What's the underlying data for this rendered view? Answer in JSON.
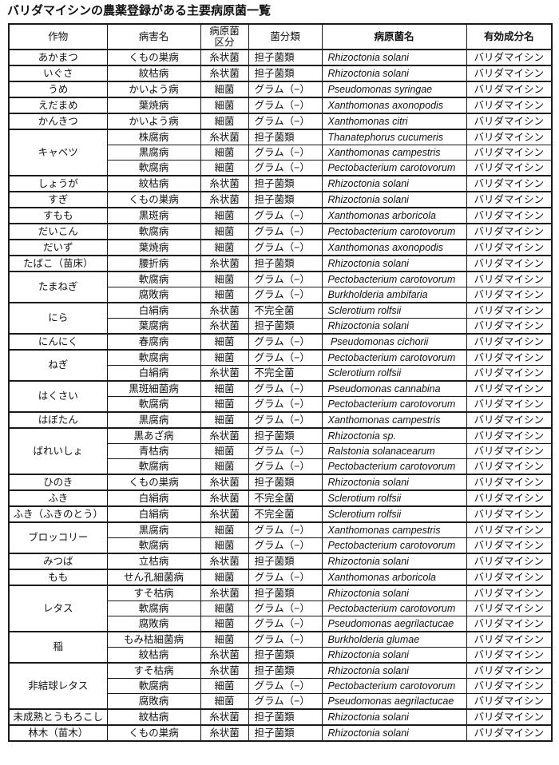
{
  "title": {
    "full": "バリダマイシンの農薬登録がある主要病原菌一覧",
    "name": "バリダマイシン",
    "rest": "の農薬登録がある主要病原菌一覧"
  },
  "table": {
    "headers": [
      {
        "label": "作物",
        "bold": false
      },
      {
        "label": "病害名",
        "bold": false
      },
      {
        "label": "病原菌\n区分",
        "bold": false
      },
      {
        "label": "菌分類",
        "bold": false
      },
      {
        "label": "病原菌名",
        "bold": true
      },
      {
        "label": "有効成分名",
        "bold": true
      }
    ],
    "groups": [
      {
        "crop": "あかまつ",
        "rows": [
          {
            "disease": "くもの巣病",
            "category": "糸状菌",
            "fungus_class": "担子菌類",
            "pathogen": "Rhizoctonia solani",
            "ingredient": "バリダマイシン"
          }
        ]
      },
      {
        "crop": "いぐさ",
        "rows": [
          {
            "disease": "紋枯病",
            "category": "糸状菌",
            "fungus_class": "担子菌類",
            "pathogen": "Rhizoctonia solani",
            "ingredient": "バリダマイシン"
          }
        ]
      },
      {
        "crop": "うめ",
        "rows": [
          {
            "disease": "かいよう病",
            "category": "細菌",
            "fungus_class": "グラム（−）",
            "pathogen": "Pseudomonas syringae",
            "ingredient": "バリダマイシン"
          }
        ]
      },
      {
        "crop": "えだまめ",
        "rows": [
          {
            "disease": "葉焼病",
            "category": "細菌",
            "fungus_class": "グラム（−）",
            "pathogen": "Xanthomonas axonopodis",
            "ingredient": "バリダマイシン"
          }
        ]
      },
      {
        "crop": "かんきつ",
        "rows": [
          {
            "disease": "かいよう病",
            "category": "細菌",
            "fungus_class": "グラム（−）",
            "pathogen": "Xanthomonas citri",
            "ingredient": "バリダマイシン"
          }
        ]
      },
      {
        "crop": "キャベツ",
        "rows": [
          {
            "disease": "株腐病",
            "category": "糸状菌",
            "fungus_class": "担子菌類",
            "pathogen": "Thanatephorus cucumeris",
            "ingredient": "バリダマイシン"
          },
          {
            "disease": "黒腐病",
            "category": "細菌",
            "fungus_class": "グラム（−）",
            "pathogen": "Xanthomonas campestris",
            "ingredient": "バリダマイシン"
          },
          {
            "disease": "軟腐病",
            "category": "細菌",
            "fungus_class": "グラム（−）",
            "pathogen": "Pectobacterium carotovorum",
            "ingredient": "バリダマイシン"
          }
        ]
      },
      {
        "crop": "しょうが",
        "rows": [
          {
            "disease": "紋枯病",
            "category": "糸状菌",
            "fungus_class": "担子菌類",
            "pathogen": "Rhizoctonia solani",
            "ingredient": "バリダマイシン"
          }
        ]
      },
      {
        "crop": "すぎ",
        "rows": [
          {
            "disease": "くもの巣病",
            "category": "糸状菌",
            "fungus_class": "担子菌類",
            "pathogen": "Rhizoctonia solani",
            "ingredient": "バリダマイシン"
          }
        ]
      },
      {
        "crop": "すもも",
        "rows": [
          {
            "disease": "黒斑病",
            "category": "細菌",
            "fungus_class": "グラム（−）",
            "pathogen": "Xanthomonas arboricola",
            "ingredient": "バリダマイシン"
          }
        ]
      },
      {
        "crop": "だいこん",
        "rows": [
          {
            "disease": "軟腐病",
            "category": "細菌",
            "fungus_class": "グラム（−）",
            "pathogen": "Pectobacterium carotovorum",
            "ingredient": "バリダマイシン"
          }
        ]
      },
      {
        "crop": "だいず",
        "rows": [
          {
            "disease": "葉焼病",
            "category": "細菌",
            "fungus_class": "グラム（−）",
            "pathogen": "Xanthomonas axonopodis",
            "ingredient": "バリダマイシン"
          }
        ]
      },
      {
        "crop": "たばこ（苗床）",
        "rows": [
          {
            "disease": "腰折病",
            "category": "糸状菌",
            "fungus_class": "担子菌類",
            "pathogen": "Rhizoctonia solani",
            "ingredient": "バリダマイシン"
          }
        ]
      },
      {
        "crop": "たまねぎ",
        "rows": [
          {
            "disease": "軟腐病",
            "category": "細菌",
            "fungus_class": "グラム（−）",
            "pathogen": "Pectobacterium carotovorum",
            "ingredient": "バリダマイシン"
          },
          {
            "disease": "腐敗病",
            "category": "細菌",
            "fungus_class": "グラム（−）",
            "pathogen": "Burkholderia ambifaria",
            "ingredient": "バリダマイシン"
          }
        ]
      },
      {
        "crop": "にら",
        "rows": [
          {
            "disease": "白絹病",
            "category": "糸状菌",
            "fungus_class": "不完全菌",
            "pathogen": "Sclerotium rolfsii",
            "ingredient": "バリダマイシン"
          },
          {
            "disease": "葉腐病",
            "category": "糸状菌",
            "fungus_class": "担子菌類",
            "pathogen": "Rhizoctonia solani",
            "ingredient": "バリダマイシン"
          }
        ]
      },
      {
        "crop": "にんにく",
        "rows": [
          {
            "disease": "春腐病",
            "category": "細菌",
            "fungus_class": "グラム（−）",
            "pathogen": " Pseudomonas cichorii",
            "ingredient": "バリダマイシン"
          }
        ]
      },
      {
        "crop": "ねぎ",
        "rows": [
          {
            "disease": "軟腐病",
            "category": "細菌",
            "fungus_class": "グラム（−）",
            "pathogen": "Pectobacterium carotovorum",
            "ingredient": "バリダマイシン"
          },
          {
            "disease": "白絹病",
            "category": "糸状菌",
            "fungus_class": "不完全菌",
            "pathogen": "Sclerotium rolfsii",
            "ingredient": "バリダマイシン"
          }
        ]
      },
      {
        "crop": "はくさい",
        "rows": [
          {
            "disease": "黒斑細菌病",
            "category": "細菌",
            "fungus_class": "グラム（−）",
            "pathogen": "Pseudomonas cannabina",
            "ingredient": "バリダマイシン"
          },
          {
            "disease": "軟腐病",
            "category": "細菌",
            "fungus_class": "グラム（−）",
            "pathogen": "Pectobacterium carotovorum",
            "ingredient": "バリダマイシン"
          }
        ]
      },
      {
        "crop": "はぼたん",
        "rows": [
          {
            "disease": "黒腐病",
            "category": "細菌",
            "fungus_class": "グラム（−）",
            "pathogen": "Xanthomonas campestris",
            "ingredient": "バリダマイシン"
          }
        ]
      },
      {
        "crop": "ばれいしょ",
        "rows": [
          {
            "disease": "黒あざ病",
            "category": "糸状菌",
            "fungus_class": "担子菌類",
            "pathogen": "Rhizoctonia sp.",
            "ingredient": "バリダマイシン"
          },
          {
            "disease": "青枯病",
            "category": "細菌",
            "fungus_class": "グラム（−）",
            "pathogen": "Ralstonia solanacearum",
            "ingredient": "バリダマイシン"
          },
          {
            "disease": "軟腐病",
            "category": "細菌",
            "fungus_class": "グラム（−）",
            "pathogen": "Pectobacterium carotovorum",
            "ingredient": "バリダマイシン"
          }
        ]
      },
      {
        "crop": "ひのき",
        "rows": [
          {
            "disease": "くもの巣病",
            "category": "糸状菌",
            "fungus_class": "担子菌類",
            "pathogen": "Rhizoctonia solani",
            "ingredient": "バリダマイシン"
          }
        ]
      },
      {
        "crop": "ふき",
        "rows": [
          {
            "disease": "白絹病",
            "category": "糸状菌",
            "fungus_class": "不完全菌",
            "pathogen": "Sclerotium rolfsii",
            "ingredient": "バリダマイシン"
          }
        ]
      },
      {
        "crop": "ふき（ふきのとう）",
        "rows": [
          {
            "disease": "白絹病",
            "category": "糸状菌",
            "fungus_class": "不完全菌",
            "pathogen": "Sclerotium rolfsii",
            "ingredient": "バリダマイシン"
          }
        ]
      },
      {
        "crop": "ブロッコリー",
        "rows": [
          {
            "disease": "黒腐病",
            "category": "細菌",
            "fungus_class": "グラム（−）",
            "pathogen": "Xanthomonas campestris",
            "ingredient": "バリダマイシン"
          },
          {
            "disease": "軟腐病",
            "category": "細菌",
            "fungus_class": "グラム（−）",
            "pathogen": "Pectobacterium carotovorum",
            "ingredient": "バリダマイシン"
          }
        ]
      },
      {
        "crop": "みつば",
        "rows": [
          {
            "disease": "立枯病",
            "category": "糸状菌",
            "fungus_class": "担子菌類",
            "pathogen": "Rhizoctonia solani",
            "ingredient": "バリダマイシン"
          }
        ]
      },
      {
        "crop": "もも",
        "rows": [
          {
            "disease": "せん孔細菌病",
            "category": "細菌",
            "fungus_class": "グラム（−）",
            "pathogen": "Xanthomonas arboricola",
            "ingredient": "バリダマイシン"
          }
        ]
      },
      {
        "crop": "レタス",
        "rows": [
          {
            "disease": "すそ枯病",
            "category": "糸状菌",
            "fungus_class": "担子菌類",
            "pathogen": "Rhizoctonia solani",
            "ingredient": "バリダマイシン"
          },
          {
            "disease": "軟腐病",
            "category": "細菌",
            "fungus_class": "グラム（−）",
            "pathogen": "Pectobacterium carotovorum",
            "ingredient": "バリダマイシン"
          },
          {
            "disease": "腐敗病",
            "category": "細菌",
            "fungus_class": "グラム（−）",
            "pathogen": "Pseudomonas aegrilactucae",
            "ingredient": "バリダマイシン"
          }
        ]
      },
      {
        "crop": "稲",
        "rows": [
          {
            "disease": "もみ枯細菌病",
            "category": "細菌",
            "fungus_class": "グラム（−）",
            "pathogen": "Burkholderia glumae",
            "ingredient": "バリダマイシン"
          },
          {
            "disease": "紋枯病",
            "category": "糸状菌",
            "fungus_class": "担子菌類",
            "pathogen": "Rhizoctonia solani",
            "ingredient": "バリダマイシン"
          }
        ]
      },
      {
        "crop": "非結球レタス",
        "rows": [
          {
            "disease": "すそ枯病",
            "category": "糸状菌",
            "fungus_class": "担子菌類",
            "pathogen": "Rhizoctonia solani",
            "ingredient": "バリダマイシン"
          },
          {
            "disease": "軟腐病",
            "category": "細菌",
            "fungus_class": "グラム（−）",
            "pathogen": "Pectobacterium carotovorum",
            "ingredient": "バリダマイシン"
          },
          {
            "disease": "腐敗病",
            "category": "細菌",
            "fungus_class": "グラム（−）",
            "pathogen": "Pseudomonas aegrilactucae",
            "ingredient": "バリダマイシン"
          }
        ]
      },
      {
        "crop": "未成熟とうもろこし",
        "rows": [
          {
            "disease": "紋枯病",
            "category": "糸状菌",
            "fungus_class": "担子菌類",
            "pathogen": "Rhizoctonia solani",
            "ingredient": "バリダマイシン"
          }
        ]
      },
      {
        "crop": "林木（苗木）",
        "rows": [
          {
            "disease": "くもの巣病",
            "category": "糸状菌",
            "fungus_class": "担子菌類",
            "pathogen": "Rhizoctonia solani",
            "ingredient": "バリダマイシン"
          }
        ]
      }
    ]
  }
}
